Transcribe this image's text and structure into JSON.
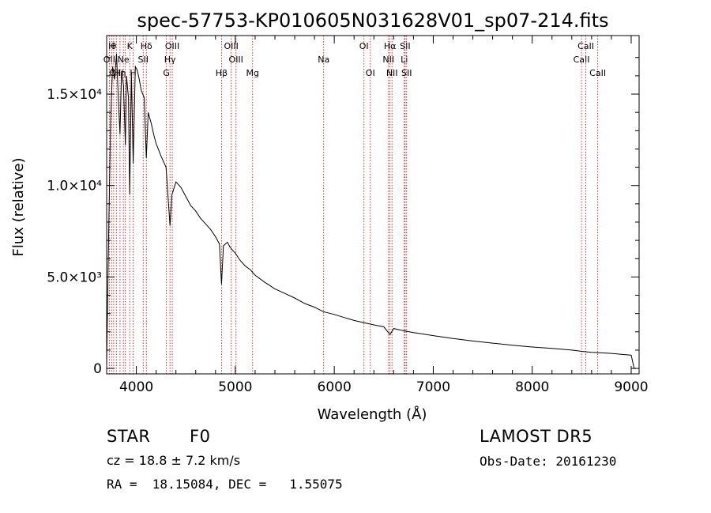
{
  "chart_data": {
    "type": "line",
    "title": "spec-57753-KP010605N031628V01_sp07-214.fits",
    "xlabel": "Wavelength (Å)",
    "ylabel": "Flux (relative)",
    "xlim": [
      3700,
      9080
    ],
    "ylim": [
      -300,
      18200
    ],
    "xticks": [
      4000,
      5000,
      6000,
      7000,
      8000,
      9000
    ],
    "yticks": [
      {
        "value": 0,
        "label": "0"
      },
      {
        "value": 5000,
        "label": "5.0×10³"
      },
      {
        "value": 10000,
        "label": "1.0×10⁴"
      },
      {
        "value": 15000,
        "label": "1.5×10⁴"
      }
    ],
    "grid": false,
    "series": [
      {
        "color": "#000000",
        "x": [
          3700,
          3720,
          3740,
          3760,
          3780,
          3800,
          3820,
          3835,
          3850,
          3870,
          3889,
          3900,
          3920,
          3933,
          3950,
          3968,
          3990,
          4010,
          4030,
          4050,
          4080,
          4101,
          4120,
          4150,
          4180,
          4200,
          4250,
          4300,
          4340,
          4360,
          4400,
          4450,
          4500,
          4550,
          4600,
          4650,
          4700,
          4750,
          4800,
          4840,
          4861,
          4880,
          4920,
          4950,
          5000,
          5050,
          5100,
          5150,
          5200,
          5300,
          5400,
          5500,
          5600,
          5700,
          5800,
          5890,
          6000,
          6100,
          6200,
          6300,
          6400,
          6500,
          6563,
          6600,
          6700,
          6800,
          6900,
          7000,
          7200,
          7400,
          7600,
          7800,
          8000,
          8200,
          8400,
          8500,
          8600,
          8800,
          9000,
          9030,
          9050
        ],
        "y": [
          200,
          7200,
          13500,
          16500,
          15800,
          17200,
          14500,
          12800,
          16200,
          15500,
          12200,
          16000,
          14800,
          9500,
          16200,
          11200,
          16500,
          16300,
          15800,
          15200,
          14800,
          11500,
          14000,
          13400,
          12700,
          12300,
          11600,
          11000,
          7800,
          9500,
          10200,
          9900,
          9400,
          8900,
          8600,
          8200,
          7900,
          7600,
          7200,
          6800,
          4600,
          6700,
          6900,
          6600,
          6300,
          5900,
          5600,
          5400,
          5100,
          4700,
          4350,
          4100,
          3850,
          3550,
          3350,
          3100,
          2950,
          2780,
          2620,
          2500,
          2380,
          2270,
          1850,
          2180,
          2060,
          1960,
          1880,
          1790,
          1630,
          1500,
          1380,
          1270,
          1170,
          1090,
          1000,
          930,
          880,
          820,
          720,
          0,
          0
        ]
      }
    ],
    "lines": [
      {
        "wavelength": 3727,
        "label": "OII",
        "row": 2
      },
      {
        "wavelength": 3750,
        "label": "H",
        "row": 1
      },
      {
        "wavelength": 3771,
        "label": "θ",
        "row": 1
      },
      {
        "wavelength": 3798,
        "label": "OIII",
        "row": 3
      },
      {
        "wavelength": 3835,
        "label": "Hη",
        "row": 3
      },
      {
        "wavelength": 3869,
        "label": "Ne",
        "row": 2
      },
      {
        "wavelength": 3889,
        "label": "",
        "row": 2
      },
      {
        "wavelength": 3933,
        "label": "K",
        "row": 1
      },
      {
        "wavelength": 3968,
        "label": "H",
        "row": 3
      },
      {
        "wavelength": 4069,
        "label": "SII",
        "row": 2
      },
      {
        "wavelength": 4101,
        "label": "Hδ",
        "row": 1
      },
      {
        "wavelength": 4304,
        "label": "G",
        "row": 3
      },
      {
        "wavelength": 4340,
        "label": "Hγ",
        "row": 2
      },
      {
        "wavelength": 4363,
        "label": "OIII",
        "row": 1
      },
      {
        "wavelength": 4861,
        "label": "Hβ",
        "row": 3
      },
      {
        "wavelength": 4959,
        "label": "OIII",
        "row": 1
      },
      {
        "wavelength": 5007,
        "label": "OIII",
        "row": 2
      },
      {
        "wavelength": 5175,
        "label": "Mg",
        "row": 3
      },
      {
        "wavelength": 5893,
        "label": "Na",
        "row": 2
      },
      {
        "wavelength": 6300,
        "label": "OI",
        "row": 1
      },
      {
        "wavelength": 6364,
        "label": "OI",
        "row": 3
      },
      {
        "wavelength": 6548,
        "label": "NII",
        "row": 2
      },
      {
        "wavelength": 6563,
        "label": "Hα",
        "row": 1
      },
      {
        "wavelength": 6583,
        "label": "NII",
        "row": 3
      },
      {
        "wavelength": 6707,
        "label": "Li",
        "row": 2
      },
      {
        "wavelength": 6716,
        "label": "SII",
        "row": 1
      },
      {
        "wavelength": 6731,
        "label": "SII",
        "row": 3
      },
      {
        "wavelength": 8498,
        "label": "CaII",
        "row": 2
      },
      {
        "wavelength": 8542,
        "label": "CaII",
        "row": 1
      },
      {
        "wavelength": 8662,
        "label": "CaII",
        "row": 3
      }
    ],
    "line_color": "#cc0000"
  },
  "info": {
    "object_class": "STAR",
    "subclass": "F0",
    "survey": "LAMOST DR5",
    "redshift": "cz = 18.8 ± 7.2 km/s",
    "obs_date": "Obs-Date: 20161230",
    "coords": "RA =  18.15084, DEC =   1.55075"
  }
}
